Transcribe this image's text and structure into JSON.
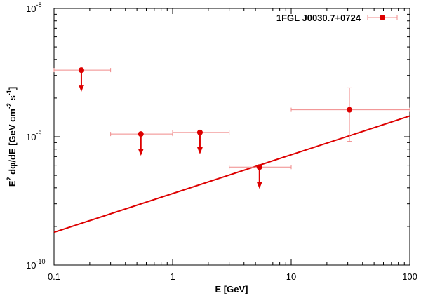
{
  "chart_data": {
    "type": "scatter",
    "xscale": "log",
    "yscale": "log",
    "xlim": [
      0.1,
      100
    ],
    "ylim": [
      1e-10,
      1e-08
    ],
    "xlabel": "E [GeV]",
    "ylabel_parts": [
      "E",
      "2",
      " dφ/dE [GeV cm",
      "-2",
      " s",
      "-1",
      "]"
    ],
    "x_tick_labels": [
      {
        "value": 0.1,
        "label": "0.1"
      },
      {
        "value": 1,
        "label": "1"
      },
      {
        "value": 10,
        "label": "10"
      },
      {
        "value": 100,
        "label": "100"
      }
    ],
    "y_tick_labels": [
      {
        "value": 1e-10,
        "base": "10",
        "exp": "-10"
      },
      {
        "value": 1e-09,
        "base": "10",
        "exp": "-9"
      },
      {
        "value": 1e-08,
        "base": "10",
        "exp": "-8"
      }
    ],
    "legend": {
      "label": "1FGL J0030.7+0724",
      "position": "top-right"
    },
    "colors": {
      "points": "#dd0000",
      "errorbars": "#f08a8a",
      "line": "#dd0000"
    },
    "points": [
      {
        "x": 0.17,
        "y": 3.3e-09,
        "x_low": 0.1,
        "x_high": 0.3,
        "upper_limit": true
      },
      {
        "x": 0.54,
        "y": 1.05e-09,
        "x_low": 0.3,
        "x_high": 1.0,
        "upper_limit": true
      },
      {
        "x": 1.7,
        "y": 1.08e-09,
        "x_low": 1.0,
        "x_high": 3.0,
        "upper_limit": true
      },
      {
        "x": 5.4,
        "y": 5.8e-10,
        "x_low": 3.0,
        "x_high": 10.0,
        "upper_limit": true
      },
      {
        "x": 31,
        "y": 1.62e-09,
        "x_low": 10.0,
        "x_high": 100,
        "y_low": 9.2e-10,
        "y_high": 2.4e-09,
        "upper_limit": false
      }
    ],
    "model_line": {
      "x": [
        0.1,
        100
      ],
      "y": [
        1.8e-10,
        1.45e-09
      ]
    }
  }
}
